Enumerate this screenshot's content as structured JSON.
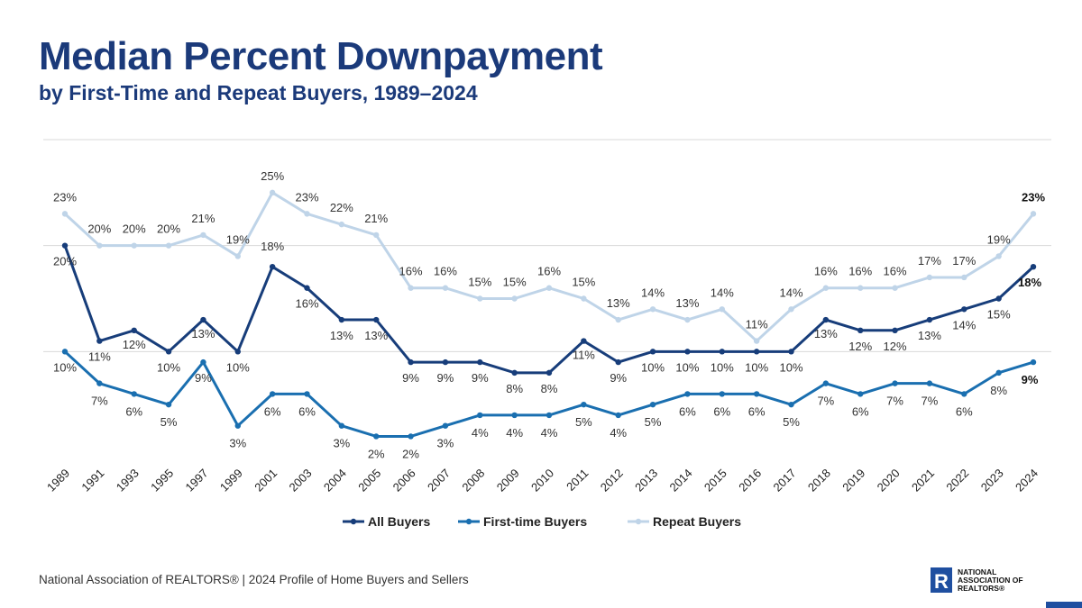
{
  "header": {
    "title": "Median Percent Downpayment",
    "subtitle": "by First-Time and Repeat Buyers, 1989–2024"
  },
  "footer": {
    "source": "National Association of REALTORS® | 2024 Profile of Home Buyers and Sellers"
  },
  "logo": {
    "letter": "R",
    "text": "NATIONAL ASSOCIATION OF REALTORS®"
  },
  "colors": {
    "all": "#173d7a",
    "first": "#1a6fb0",
    "repeat": "#bfd4e8",
    "grid": "#d9d9d9",
    "label": "#333333",
    "accent": "#1f4fa0"
  },
  "chart_data": {
    "type": "line",
    "categories": [
      "1989",
      "1991",
      "1993",
      "1995",
      "1997",
      "1999",
      "2001",
      "2003",
      "2004",
      "2005",
      "2006",
      "2007",
      "2008",
      "2009",
      "2010",
      "2011",
      "2012",
      "2013",
      "2014",
      "2015",
      "2016",
      "2017",
      "2018",
      "2019",
      "2020",
      "2021",
      "2022",
      "2023",
      "2024"
    ],
    "series": [
      {
        "name": "All Buyers",
        "values": [
          20,
          11,
          12,
          10,
          13,
          10,
          18,
          16,
          13,
          13,
          9,
          9,
          9,
          8,
          8,
          11,
          9,
          10,
          10,
          10,
          10,
          10,
          13,
          12,
          12,
          13,
          14,
          15,
          18
        ]
      },
      {
        "name": "First-time Buyers",
        "values": [
          10,
          7,
          6,
          5,
          9,
          3,
          6,
          6,
          3,
          2,
          2,
          3,
          4,
          4,
          4,
          5,
          4,
          5,
          6,
          6,
          6,
          5,
          7,
          6,
          7,
          7,
          6,
          8,
          9
        ]
      },
      {
        "name": "Repeat Buyers",
        "values": [
          23,
          20,
          20,
          20,
          21,
          19,
          25,
          23,
          22,
          21,
          16,
          16,
          15,
          15,
          16,
          15,
          13,
          14,
          13,
          14,
          11,
          14,
          16,
          16,
          16,
          17,
          17,
          19,
          23
        ]
      }
    ],
    "value_suffix": "%",
    "ylim": [
      0,
      30
    ],
    "grid": true,
    "legend": "bottom",
    "xlabel": "",
    "ylabel": ""
  }
}
